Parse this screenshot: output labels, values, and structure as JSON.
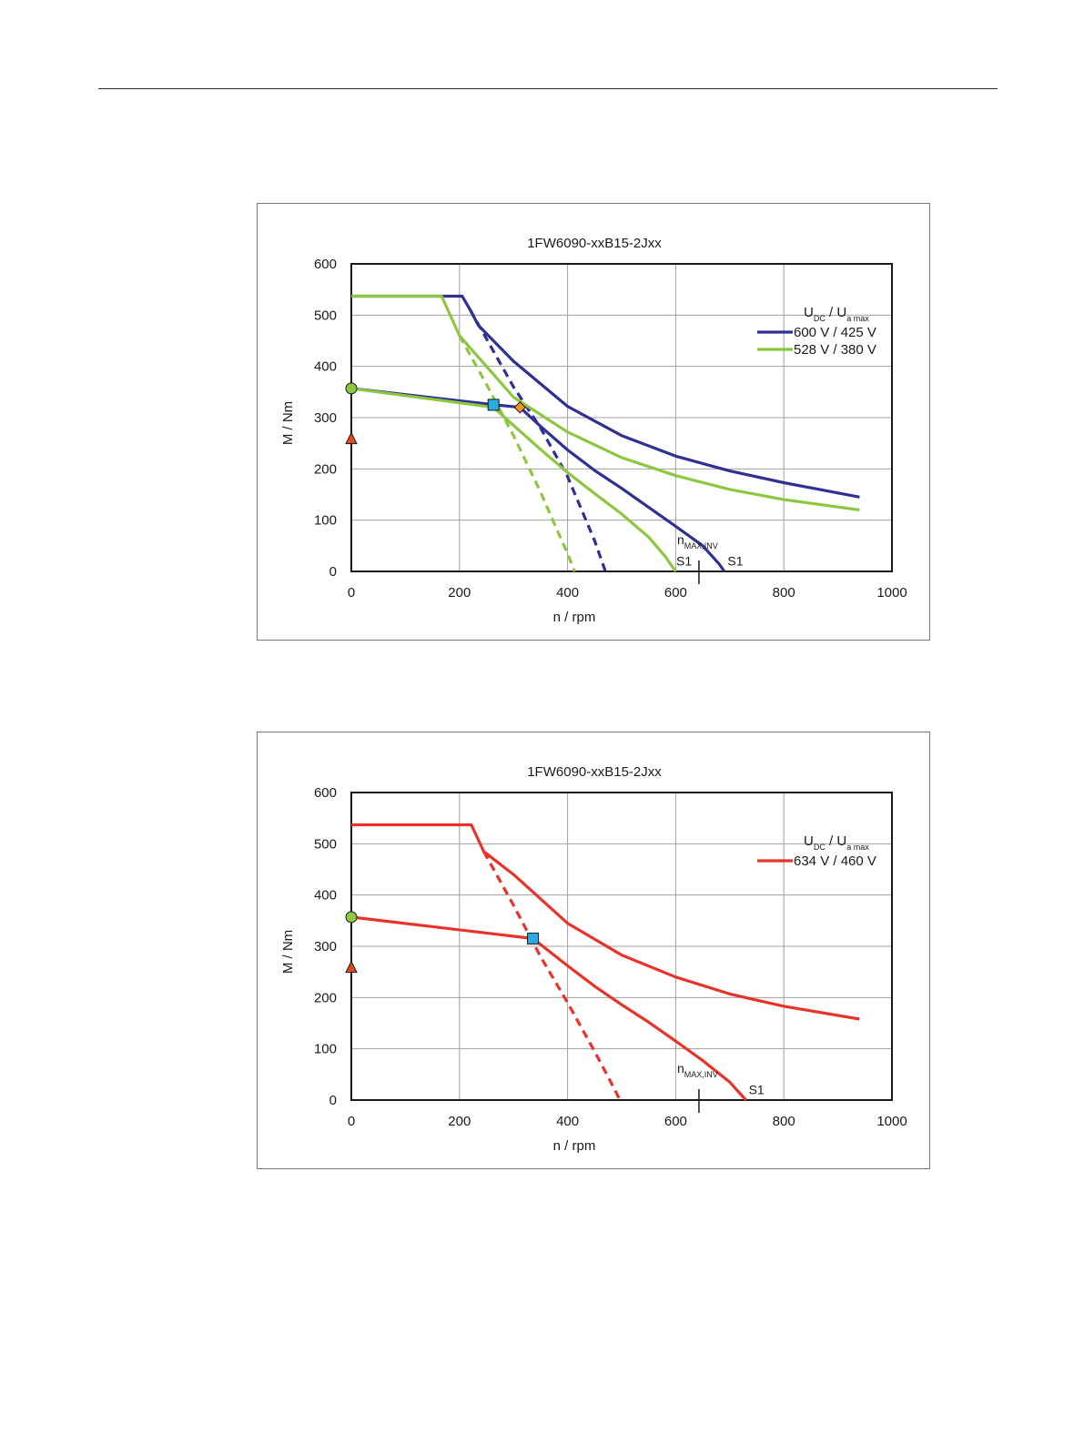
{
  "chart_data": [
    {
      "type": "line",
      "title": "1FW6090-xxB15-2Jxx",
      "xlabel": "n / rpm",
      "ylabel": "M / Nm",
      "xlim": [
        0,
        1000
      ],
      "ylim": [
        0,
        600
      ],
      "xticks": [
        "0",
        "200",
        "400",
        "600",
        "800",
        "1000"
      ],
      "yticks": [
        "0",
        "100",
        "200",
        "300",
        "400",
        "500",
        "600"
      ],
      "grid": true,
      "legend_position": "top-right",
      "legend_header": {
        "main1": "U",
        "sub1": "DC",
        "sep": "/",
        "main2": "U",
        "sub2": "a max"
      },
      "annotations": [
        {
          "kind": "nmax",
          "main": "n",
          "sub": "MAX,INV",
          "x": 643
        },
        {
          "kind": "label",
          "text": "S1",
          "x": 601,
          "y": 20
        },
        {
          "kind": "label",
          "text": "S1",
          "x": 696,
          "y": 20
        }
      ],
      "series": [
        {
          "name": "600 V / 425 V",
          "color": "#2e3192",
          "dash": false,
          "legend": true,
          "x": [
            0,
            205,
            220,
            235,
            300,
            400,
            500,
            600,
            700,
            800,
            940
          ],
          "y": [
            537,
            537,
            510,
            480,
            410,
            322,
            265,
            225,
            196,
            173,
            145
          ]
        },
        {
          "name": "600 V / 425 V dashed",
          "color": "#2e3192",
          "dash": true,
          "legend": false,
          "x": [
            220,
            300,
            350,
            400,
            450,
            470
          ],
          "y": [
            510,
            360,
            280,
            185,
            60,
            0
          ]
        },
        {
          "name": "600 V / 425 V S1",
          "color": "#2e3192",
          "dash": false,
          "legend": false,
          "x": [
            0,
            265,
            312,
            350,
            400,
            450,
            500,
            550,
            600,
            650,
            680,
            690
          ],
          "y": [
            357,
            325,
            320,
            283,
            237,
            197,
            162,
            125,
            88,
            50,
            15,
            0
          ]
        },
        {
          "name": "528 V / 380 V",
          "color": "#8dc63f",
          "dash": false,
          "legend": true,
          "x": [
            0,
            167,
            200,
            300,
            400,
            500,
            600,
            700,
            800,
            940
          ],
          "y": [
            537,
            537,
            460,
            340,
            272,
            222,
            187,
            160,
            140,
            120
          ]
        },
        {
          "name": "528 V / 380 V dashed",
          "color": "#8dc63f",
          "dash": true,
          "legend": false,
          "x": [
            200,
            250,
            300,
            350,
            380,
            400,
            413
          ],
          "y": [
            460,
            365,
            265,
            155,
            82,
            35,
            0
          ]
        },
        {
          "name": "528 V / 380 V S1",
          "color": "#8dc63f",
          "dash": false,
          "legend": false,
          "x": [
            0,
            263,
            300,
            350,
            400,
            450,
            500,
            550,
            580,
            600
          ],
          "y": [
            357,
            320,
            285,
            238,
            193,
            152,
            112,
            67,
            30,
            0
          ]
        }
      ],
      "markers": [
        {
          "shape": "circle",
          "color": "#8dc63f",
          "x": 0,
          "y": 357
        },
        {
          "shape": "triangle",
          "color": "#e04a1e",
          "x": 0,
          "y": 258
        },
        {
          "shape": "square",
          "color": "#29abe2",
          "x": 263,
          "y": 325
        },
        {
          "shape": "diamond",
          "color": "#f7941d",
          "x": 312,
          "y": 320
        }
      ]
    },
    {
      "type": "line",
      "title": "1FW6090-xxB15-2Jxx",
      "xlabel": "n / rpm",
      "ylabel": "M / Nm",
      "xlim": [
        0,
        1000
      ],
      "ylim": [
        0,
        600
      ],
      "xticks": [
        "0",
        "200",
        "400",
        "600",
        "800",
        "1000"
      ],
      "yticks": [
        "0",
        "100",
        "200",
        "300",
        "400",
        "500",
        "600"
      ],
      "grid": true,
      "legend_position": "top-right",
      "legend_header": {
        "main1": "U",
        "sub1": "DC",
        "sep": "/",
        "main2": "U",
        "sub2": "a max"
      },
      "annotations": [
        {
          "kind": "nmax",
          "main": "n",
          "sub": "MAX,INV",
          "x": 643
        },
        {
          "kind": "label",
          "text": "S1",
          "x": 735,
          "y": 20
        }
      ],
      "series": [
        {
          "name": "634 V / 460 V",
          "color": "#e8322a",
          "dash": false,
          "legend": true,
          "x": [
            0,
            222,
            245,
            300,
            400,
            500,
            600,
            700,
            800,
            940
          ],
          "y": [
            537,
            537,
            485,
            440,
            345,
            283,
            240,
            207,
            183,
            158
          ]
        },
        {
          "name": "634 V / 460 V dashed",
          "color": "#e8322a",
          "dash": true,
          "legend": false,
          "x": [
            245,
            300,
            350,
            400,
            450,
            480,
            497
          ],
          "y": [
            485,
            380,
            280,
            190,
            95,
            35,
            0
          ]
        },
        {
          "name": "634 V / 460 V S1",
          "color": "#e8322a",
          "dash": false,
          "legend": false,
          "x": [
            0,
            336,
            400,
            450,
            500,
            550,
            600,
            650,
            700,
            730
          ],
          "y": [
            357,
            315,
            262,
            222,
            186,
            152,
            115,
            77,
            35,
            0
          ]
        }
      ],
      "markers": [
        {
          "shape": "circle",
          "color": "#8dc63f",
          "x": 0,
          "y": 357
        },
        {
          "shape": "triangle",
          "color": "#e04a1e",
          "x": 0,
          "y": 258
        },
        {
          "shape": "square",
          "color": "#29abe2",
          "x": 336,
          "y": 315
        }
      ]
    }
  ]
}
